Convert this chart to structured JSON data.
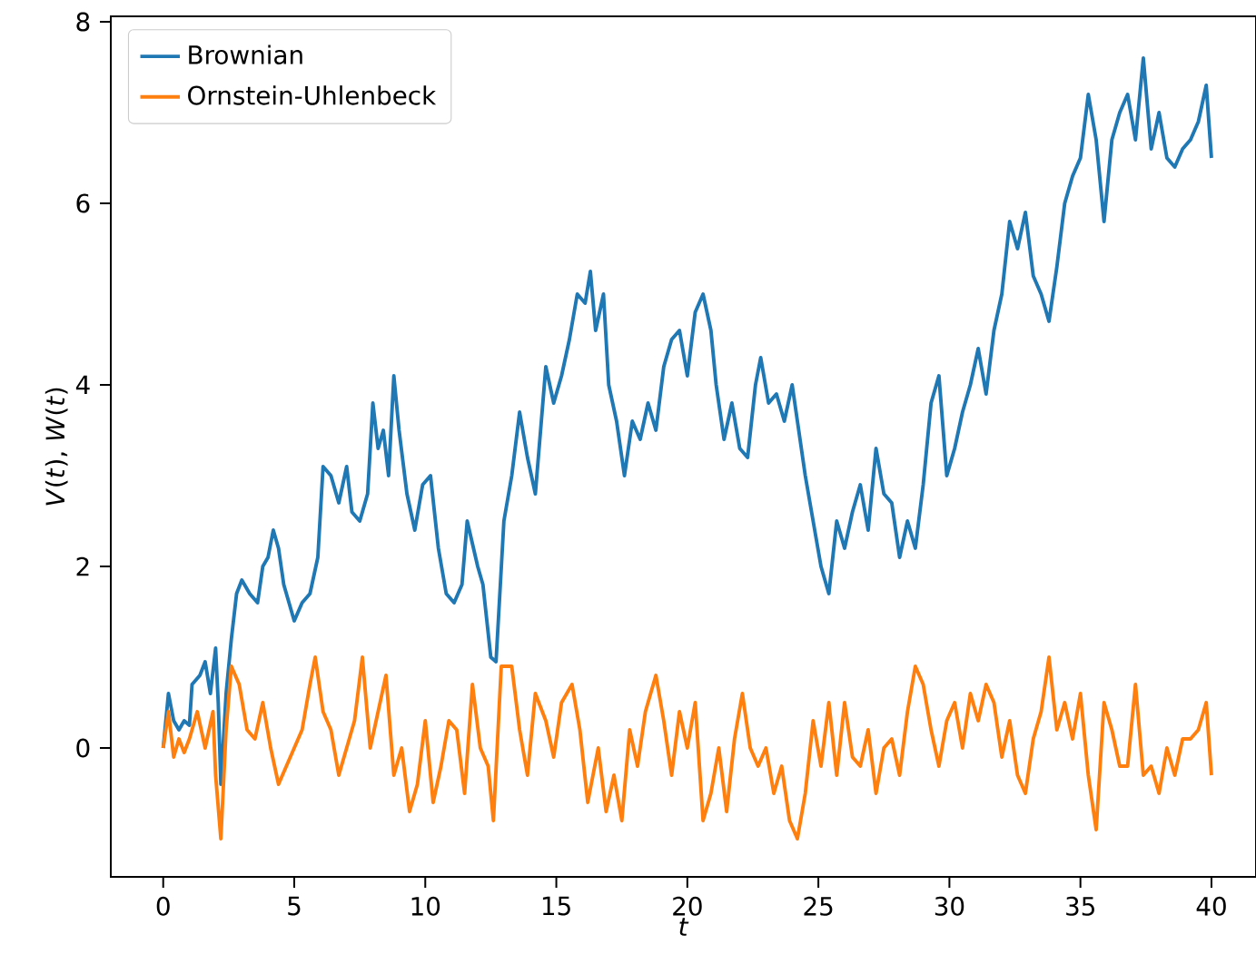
{
  "chart_data": {
    "type": "line",
    "xlabel": "*t*",
    "ylabel": "*V*(*t*), *W*(*t*)",
    "xlim": [
      -2,
      41.7
    ],
    "ylim": [
      -1.42,
      8.06
    ],
    "xticks": [
      0,
      5,
      10,
      15,
      20,
      25,
      30,
      35,
      40
    ],
    "yticks": [
      0,
      2,
      4,
      6,
      8
    ],
    "grid": false,
    "legend": "top left",
    "marker": "none",
    "line_style": "solid",
    "series": [
      {
        "name": "Brownian",
        "color": "#1f77b4",
        "x": [
          0,
          0.2,
          0.4,
          0.6,
          0.8,
          1.0,
          1.1,
          1.4,
          1.6,
          1.8,
          2.0,
          2.1,
          2.2,
          2.4,
          2.6,
          2.8,
          3.0,
          3.3,
          3.6,
          3.8,
          4.0,
          4.2,
          4.4,
          4.6,
          4.8,
          5.0,
          5.3,
          5.6,
          5.9,
          6.1,
          6.4,
          6.7,
          7.0,
          7.2,
          7.5,
          7.8,
          8.0,
          8.2,
          8.4,
          8.6,
          8.8,
          9.0,
          9.3,
          9.6,
          9.9,
          10.2,
          10.5,
          10.8,
          11.1,
          11.4,
          11.6,
          12.0,
          12.2,
          12.5,
          12.7,
          13.0,
          13.3,
          13.6,
          13.9,
          14.2,
          14.4,
          14.6,
          14.9,
          15.2,
          15.5,
          15.8,
          16.1,
          16.3,
          16.5,
          16.8,
          17.0,
          17.3,
          17.6,
          17.9,
          18.2,
          18.5,
          18.8,
          19.1,
          19.4,
          19.7,
          20.0,
          20.3,
          20.6,
          20.9,
          21.1,
          21.4,
          21.7,
          22.0,
          22.3,
          22.6,
          22.8,
          23.1,
          23.4,
          23.7,
          24.0,
          24.2,
          24.5,
          24.8,
          25.1,
          25.4,
          25.7,
          26.0,
          26.3,
          26.6,
          26.9,
          27.2,
          27.5,
          27.8,
          28.1,
          28.4,
          28.7,
          29.0,
          29.3,
          29.6,
          29.9,
          30.2,
          30.5,
          30.8,
          31.1,
          31.4,
          31.7,
          32.0,
          32.3,
          32.6,
          32.9,
          33.2,
          33.5,
          33.8,
          34.1,
          34.4,
          34.7,
          35.0,
          35.3,
          35.6,
          35.9,
          36.2,
          36.5,
          36.8,
          37.1,
          37.4,
          37.7,
          38.0,
          38.3,
          38.6,
          38.9,
          39.2,
          39.5,
          39.8,
          40.0
        ],
        "values": [
          0,
          0.6,
          0.3,
          0.2,
          0.3,
          0.25,
          0.7,
          0.8,
          0.95,
          0.6,
          1.1,
          0.5,
          -0.4,
          0.6,
          1.2,
          1.7,
          1.85,
          1.7,
          1.6,
          2.0,
          2.1,
          2.4,
          2.2,
          1.8,
          1.6,
          1.4,
          1.6,
          1.7,
          2.1,
          3.1,
          3.0,
          2.7,
          3.1,
          2.6,
          2.5,
          2.8,
          3.8,
          3.3,
          3.5,
          3.0,
          4.1,
          3.5,
          2.8,
          2.4,
          2.9,
          3.0,
          2.2,
          1.7,
          1.6,
          1.8,
          2.5,
          2.0,
          1.8,
          1.0,
          0.95,
          2.5,
          3.0,
          3.7,
          3.2,
          2.8,
          3.5,
          4.2,
          3.8,
          4.1,
          4.5,
          5.0,
          4.9,
          5.25,
          4.6,
          5.0,
          4.0,
          3.6,
          3.0,
          3.6,
          3.4,
          3.8,
          3.5,
          4.2,
          4.5,
          4.6,
          4.1,
          4.8,
          5.0,
          4.6,
          4.0,
          3.4,
          3.8,
          3.3,
          3.2,
          4.0,
          4.3,
          3.8,
          3.9,
          3.6,
          4.0,
          3.6,
          3.0,
          2.5,
          2.0,
          1.7,
          2.5,
          2.2,
          2.6,
          2.9,
          2.4,
          3.3,
          2.8,
          2.7,
          2.1,
          2.5,
          2.2,
          2.9,
          3.8,
          4.1,
          3.0,
          3.3,
          3.7,
          4.0,
          4.4,
          3.9,
          4.6,
          5.0,
          5.8,
          5.5,
          5.9,
          5.2,
          5.0,
          4.7,
          5.3,
          6.0,
          6.3,
          6.5,
          7.2,
          6.7,
          5.8,
          6.7,
          7.0,
          7.2,
          6.7,
          7.6,
          6.6,
          7.0,
          6.5,
          6.4,
          6.6,
          6.7,
          6.9,
          7.3,
          6.5
        ]
      },
      {
        "name": "Ornstein-Uhlenbeck",
        "color": "#ff7f0e",
        "x": [
          0,
          0.2,
          0.4,
          0.6,
          0.8,
          1.0,
          1.3,
          1.6,
          1.9,
          2.0,
          2.2,
          2.4,
          2.6,
          2.9,
          3.2,
          3.5,
          3.8,
          4.1,
          4.4,
          4.7,
          5.0,
          5.3,
          5.6,
          5.8,
          6.1,
          6.4,
          6.7,
          7.0,
          7.3,
          7.6,
          7.9,
          8.2,
          8.5,
          8.8,
          9.1,
          9.4,
          9.7,
          10.0,
          10.3,
          10.6,
          10.9,
          11.2,
          11.5,
          11.8,
          12.1,
          12.4,
          12.6,
          12.9,
          13.3,
          13.6,
          13.9,
          14.2,
          14.6,
          14.9,
          15.2,
          15.6,
          15.9,
          16.2,
          16.6,
          16.9,
          17.2,
          17.5,
          17.8,
          18.1,
          18.4,
          18.8,
          19.1,
          19.4,
          19.7,
          20.0,
          20.3,
          20.6,
          20.9,
          21.2,
          21.5,
          21.8,
          22.1,
          22.4,
          22.7,
          23.0,
          23.3,
          23.6,
          23.9,
          24.2,
          24.5,
          24.8,
          25.1,
          25.4,
          25.7,
          26.0,
          26.3,
          26.6,
          26.9,
          27.2,
          27.5,
          27.8,
          28.1,
          28.4,
          28.7,
          29.0,
          29.3,
          29.6,
          29.9,
          30.2,
          30.5,
          30.8,
          31.1,
          31.4,
          31.7,
          32.0,
          32.3,
          32.6,
          32.9,
          33.2,
          33.5,
          33.8,
          34.1,
          34.4,
          34.7,
          35.0,
          35.3,
          35.6,
          35.9,
          36.2,
          36.5,
          36.8,
          37.1,
          37.4,
          37.7,
          38.0,
          38.3,
          38.6,
          38.9,
          39.2,
          39.5,
          39.8,
          40.0
        ],
        "values": [
          0,
          0.4,
          -0.1,
          0.1,
          -0.05,
          0.1,
          0.4,
          0.0,
          0.4,
          -0.3,
          -1.0,
          0.2,
          0.9,
          0.7,
          0.2,
          0.1,
          0.5,
          0.0,
          -0.4,
          -0.2,
          0.0,
          0.2,
          0.7,
          1.0,
          0.4,
          0.2,
          -0.3,
          0.0,
          0.3,
          1.0,
          0.0,
          0.4,
          0.8,
          -0.3,
          0.0,
          -0.7,
          -0.4,
          0.3,
          -0.6,
          -0.2,
          0.3,
          0.2,
          -0.5,
          0.7,
          0.0,
          -0.2,
          -0.8,
          0.9,
          0.9,
          0.2,
          -0.3,
          0.6,
          0.3,
          -0.1,
          0.5,
          0.7,
          0.2,
          -0.6,
          0.0,
          -0.7,
          -0.3,
          -0.8,
          0.2,
          -0.2,
          0.4,
          0.8,
          0.3,
          -0.3,
          0.4,
          0.0,
          0.5,
          -0.8,
          -0.5,
          0.0,
          -0.7,
          0.1,
          0.6,
          0.0,
          -0.2,
          0.0,
          -0.5,
          -0.2,
          -0.8,
          -1.0,
          -0.5,
          0.3,
          -0.2,
          0.5,
          -0.3,
          0.5,
          -0.1,
          -0.2,
          0.2,
          -0.5,
          0.0,
          0.1,
          -0.3,
          0.4,
          0.9,
          0.7,
          0.2,
          -0.2,
          0.3,
          0.5,
          0.0,
          0.6,
          0.3,
          0.7,
          0.5,
          -0.1,
          0.3,
          -0.3,
          -0.5,
          0.1,
          0.4,
          1.0,
          0.2,
          0.5,
          0.1,
          0.6,
          -0.3,
          -0.9,
          0.5,
          0.2,
          -0.2,
          -0.2,
          0.7,
          -0.3,
          -0.2,
          -0.5,
          0.0,
          -0.3,
          0.1,
          0.1,
          0.2,
          0.5,
          -0.3
        ]
      }
    ]
  }
}
